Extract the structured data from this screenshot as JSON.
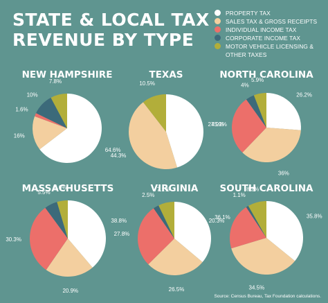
{
  "title": "STATE & LOCAL TAX REVENUE BY TYPE",
  "source": "Source: Census Bureau, Tax Foundation calculations.",
  "colors": {
    "background": "#5f9590",
    "property": "#ffffff",
    "sales": "#f3cf9f",
    "individual": "#ec6f6a",
    "corporate": "#3c6a7a",
    "motor": "#b2ae3a"
  },
  "legend": [
    {
      "label": "PROPERTY TAX",
      "color": "#ffffff"
    },
    {
      "label": "SALES TAX & GROSS RECEIPTS",
      "color": "#f3cf9f"
    },
    {
      "label": "INDIVIDUAL INCOME TAX",
      "color": "#ec6f6a"
    },
    {
      "label": "CORPORATE INCOME TAX",
      "color": "#3c6a7a"
    },
    {
      "label": "MOTOR VEHICLE LICENSING & OTHER TAXES",
      "color": "#b2ae3a"
    }
  ],
  "chart_data": [
    {
      "type": "pie",
      "title": "NEW HAMPSHIRE",
      "categories": [
        "Property Tax",
        "Sales Tax & Gross Receipts",
        "Individual Income Tax",
        "Corporate Income Tax",
        "Motor Vehicle Licensing & Other Taxes"
      ],
      "values": [
        64.6,
        16,
        1.6,
        10,
        7.8
      ],
      "labels": [
        "64.6%",
        "16%",
        "1.6%",
        "10%",
        "7.8%"
      ]
    },
    {
      "type": "pie",
      "title": "TEXAS",
      "categories": [
        "Property Tax",
        "Sales Tax & Gross Receipts",
        "Individual Income Tax",
        "Corporate Income Tax",
        "Motor Vehicle Licensing & Other Taxes"
      ],
      "values": [
        45.2,
        44.3,
        0,
        0,
        10.5
      ],
      "labels": [
        "45.2%",
        "44.3%",
        "",
        "",
        "10.5%"
      ]
    },
    {
      "type": "pie",
      "title": "NORTH CAROLINA",
      "categories": [
        "Property Tax",
        "Sales Tax & Gross Receipts",
        "Individual Income Tax",
        "Corporate Income Tax",
        "Motor Vehicle Licensing & Other Taxes"
      ],
      "values": [
        26.2,
        36,
        27.9,
        4,
        5.9
      ],
      "labels": [
        "26.2%",
        "36%",
        "27.9%",
        "4%",
        "5.9%"
      ]
    },
    {
      "type": "pie",
      "title": "MASSACHUSETTS",
      "categories": [
        "Property Tax",
        "Sales Tax & Gross Receipts",
        "Individual Income Tax",
        "Corporate Income Tax",
        "Motor Vehicle Licensing & Other Taxes"
      ],
      "values": [
        38.8,
        20.9,
        30.3,
        5.5,
        4.6
      ],
      "labels": [
        "38.8%",
        "20.9%",
        "30.3%",
        "5.5%",
        "4.6%"
      ]
    },
    {
      "type": "pie",
      "title": "VIRGINIA",
      "categories": [
        "Property Tax",
        "Sales Tax & Gross Receipts",
        "Individual Income Tax",
        "Corporate Income Tax",
        "Motor Vehicle Licensing & Other Taxes"
      ],
      "values": [
        36.1,
        26.5,
        27.8,
        2.5,
        7.1
      ],
      "labels": [
        "36.1%",
        "26.5%",
        "27.8%",
        "2.5%",
        "7.1%"
      ]
    },
    {
      "type": "pie",
      "title": "SOUTH CAROLINA",
      "categories": [
        "Property Tax",
        "Sales Tax & Gross Receipts",
        "Individual Income Tax",
        "Corporate Income Tax",
        "Motor Vehicle Licensing & Other Taxes"
      ],
      "values": [
        35.8,
        34.5,
        20.3,
        1.1,
        8.2
      ],
      "labels": [
        "35.8%",
        "34.5%",
        "20.3%",
        "1.1%",
        "8.2%"
      ]
    }
  ]
}
